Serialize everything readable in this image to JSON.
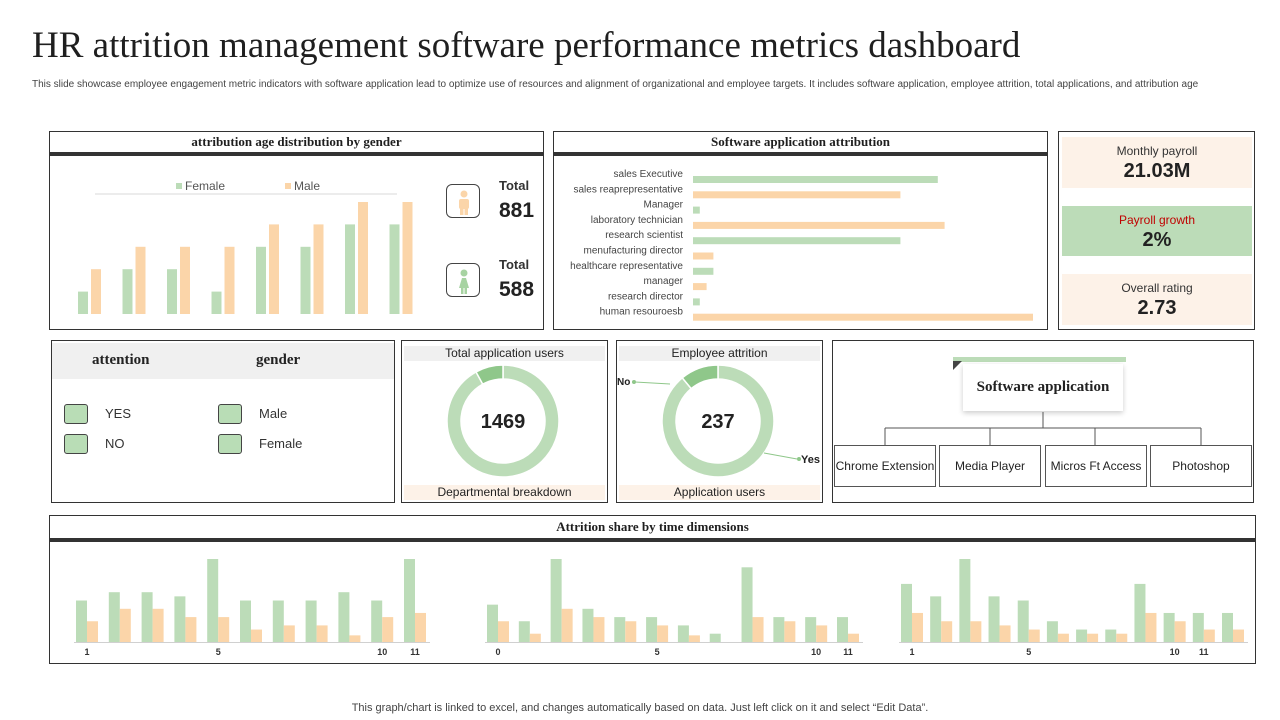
{
  "title": "HR attrition management software performance metrics dashboard",
  "subtitle": "This slide showcase employee engagement metric indicators with software application lead to optimize use of resources and alignment of organizational and employee targets. It includes software application, employee attrition, total applications, and attribution age",
  "colors": {
    "female": "#bcdcb8",
    "male": "#fbd5a9",
    "green_dark": "#8fc78a",
    "peach_bg": "#fdf2e8",
    "green_bg": "#bcdcb8"
  },
  "age_panel": {
    "header": "attribution  age distribution  by gender",
    "totals": [
      {
        "icon": "male-person-icon",
        "label": "Total",
        "value": "881"
      },
      {
        "icon": "female-person-icon",
        "label": "Total",
        "value": "588"
      }
    ]
  },
  "software_panel": {
    "header": "Software application  attribution"
  },
  "kpis": [
    {
      "label": "Monthly payroll",
      "value": "21.03M"
    },
    {
      "label": "Payroll growth",
      "value": "2%"
    },
    {
      "label": "Overall rating",
      "value": "2.73"
    }
  ],
  "legend_panel": {
    "col1_header": "attention",
    "col2_header": "gender",
    "col1_items": [
      "YES",
      "NO"
    ],
    "col2_items": [
      "Male",
      "Female"
    ]
  },
  "donut1": {
    "top_label": "Total application users",
    "center": "1469",
    "bottom_label": "Departmental breakdown"
  },
  "donut2": {
    "top_label": "Employee attrition",
    "center": "237",
    "bottom_label": "Application users",
    "label_no": "No",
    "label_yes": "Yes"
  },
  "tree": {
    "root": "Software application",
    "leaves": [
      "Chrome Extension",
      "Media Player",
      "Micros Ft Access",
      "Photoshop"
    ]
  },
  "time_panel": {
    "header": "Attrition share by time dimensions"
  },
  "footer": "This graph/chart is linked to excel,  and changes automatically based on data. Just left click on it and select “Edit Data”.",
  "chart_data": [
    {
      "id": "age",
      "type": "bar",
      "title": "attribution  age distribution  by gender",
      "legend": [
        "Female",
        "Male"
      ],
      "ylim": [
        0,
        10
      ],
      "series": [
        {
          "name": "Female",
          "values": [
            2,
            4,
            4,
            2,
            6,
            6,
            8,
            8
          ]
        },
        {
          "name": "Male",
          "values": [
            4,
            6,
            6,
            6,
            8,
            8,
            10,
            10
          ]
        }
      ]
    },
    {
      "id": "software",
      "type": "bar",
      "orientation": "horizontal",
      "title": "Software application  attribution",
      "categories": [
        "sales Executive",
        "sales reaprepresentative",
        "Manager",
        "laboratory technician",
        "research scientist",
        "menufacturing director",
        "healthcare representative",
        "manager",
        "research director",
        "human resouroesb"
      ],
      "values": [
        72,
        61,
        2,
        74,
        61,
        6,
        6,
        4,
        2,
        100
      ],
      "series_per_category": [
        "Female",
        "Male",
        "Female",
        "Male",
        "Female",
        "Male",
        "Female",
        "Male",
        "Female",
        "Male"
      ],
      "xlim": [
        0,
        100
      ]
    },
    {
      "id": "donut1",
      "type": "pie",
      "title": "Total application users",
      "values": [
        92,
        8
      ]
    },
    {
      "id": "donut2",
      "type": "pie",
      "title": "Employee attrition",
      "labels": [
        "No",
        "Yes"
      ],
      "values": [
        89,
        11
      ]
    },
    {
      "id": "time1",
      "type": "bar",
      "ticks": [
        "1",
        "5",
        "10",
        "11"
      ],
      "tick_index": [
        0,
        4,
        9,
        10
      ],
      "ylim": [
        0,
        10
      ],
      "series": [
        {
          "name": "Female",
          "values": [
            5,
            6,
            6,
            5.5,
            10,
            5,
            5,
            5,
            6,
            5,
            10
          ]
        },
        {
          "name": "Male",
          "values": [
            2.5,
            4,
            4,
            3,
            3,
            1.5,
            2,
            2,
            0.8,
            3,
            3.5
          ]
        }
      ]
    },
    {
      "id": "time2",
      "type": "bar",
      "ticks": [
        "0",
        "5",
        "10",
        "11"
      ],
      "tick_index": [
        0,
        5,
        10,
        11
      ],
      "ylim": [
        0,
        10
      ],
      "series": [
        {
          "name": "Female",
          "values": [
            4.5,
            2.5,
            10,
            4,
            3,
            3,
            2,
            1,
            9,
            3,
            3,
            3
          ]
        },
        {
          "name": "Male",
          "values": [
            2.5,
            1,
            4,
            3,
            2.5,
            2,
            0.8,
            0,
            3,
            2.5,
            2,
            1
          ]
        }
      ]
    },
    {
      "id": "time3",
      "type": "bar",
      "ticks": [
        "1",
        "5",
        "10",
        "11"
      ],
      "tick_index": [
        0,
        4,
        9,
        10
      ],
      "ylim": [
        0,
        10
      ],
      "series": [
        {
          "name": "Female",
          "values": [
            7,
            5.5,
            10,
            5.5,
            5,
            2.5,
            1.5,
            1.5,
            7,
            3.5,
            3.5,
            3.5
          ]
        },
        {
          "name": "Male",
          "values": [
            3.5,
            2.5,
            2.5,
            2,
            1.5,
            1,
            1,
            1,
            3.5,
            2.5,
            1.5,
            1.5
          ]
        }
      ]
    }
  ]
}
